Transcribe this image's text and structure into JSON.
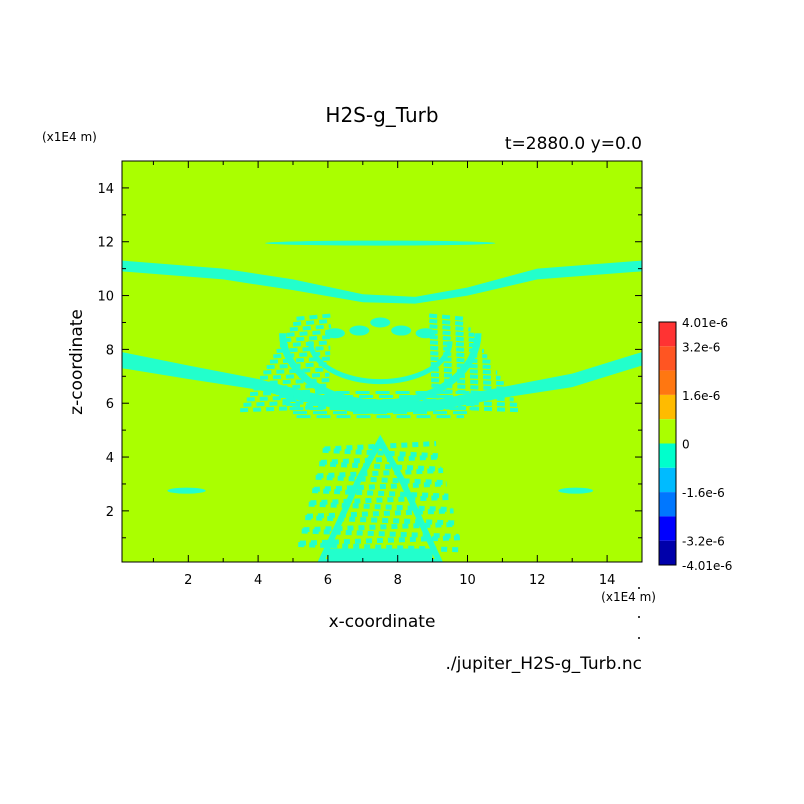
{
  "chart_data": {
    "type": "heatmap",
    "title": "H2S-g_Turb",
    "subtitle": "t=2880.0 y=0.0",
    "xlabel": "x-coordinate",
    "ylabel": "z-coordinate",
    "x_unit": "(x1E4 m)",
    "y_unit": "(x1E4 m)",
    "source_file": "./jupiter_H2S-g_Turb.nc",
    "xlim": [
      0.1,
      15
    ],
    "ylim": [
      0.1,
      15
    ],
    "xticks": [
      "2",
      "4",
      "6",
      "8",
      "10",
      "12",
      "14"
    ],
    "yticks": [
      "2",
      "4",
      "6",
      "8",
      "10",
      "12",
      "14"
    ],
    "colorbar": {
      "labels": [
        "4.01e-6",
        "3.2e-6",
        "1.6e-6",
        "0",
        "-1.6e-6",
        "-3.2e-6",
        "-4.01e-6"
      ],
      "levels": [
        4.01e-06,
        3.2e-06,
        2.4e-06,
        1.6e-06,
        8e-07,
        0,
        -8e-07,
        -1.6e-06,
        -2.4e-06,
        -3.2e-06,
        -4.01e-06
      ],
      "colors": [
        "#ff3333",
        "#ff5522",
        "#ff7711",
        "#ffbb00",
        "#aaff00",
        "#00ffcc",
        "#00bbff",
        "#0077ff",
        "#0000ff",
        "#0000aa"
      ]
    },
    "background_color": "#aaff00",
    "negative_color": "#22ffcc",
    "field_range": [
      -8e-07,
      8e-07
    ],
    "features": {
      "thin_band_top": {
        "x0": 4.2,
        "x1": 10.8,
        "z": 11.95
      },
      "side_bands_upper": [
        {
          "x": [
            0.1,
            3,
            5,
            7,
            8.5,
            10,
            12,
            15
          ],
          "z_top": [
            11.3,
            11.0,
            10.6,
            10.05,
            9.95,
            10.3,
            11.0,
            11.3
          ],
          "z_bot": [
            10.9,
            10.6,
            10.2,
            9.75,
            9.7,
            10.0,
            10.6,
            10.9
          ]
        }
      ],
      "side_bands_lower": [
        {
          "x": [
            0.1,
            2,
            4,
            5.5,
            7,
            9,
            11,
            13,
            15
          ],
          "z_top": [
            7.9,
            7.4,
            6.9,
            6.4,
            6.0,
            6.1,
            6.6,
            7.1,
            7.9
          ],
          "z_bot": [
            7.3,
            6.9,
            6.5,
            6.0,
            5.6,
            5.7,
            6.2,
            6.6,
            7.4
          ]
        }
      ],
      "short_bands_low": [
        {
          "x0": 1.4,
          "x1": 2.5,
          "z": 2.75
        },
        {
          "x0": 12.6,
          "x1": 13.6,
          "z": 2.75
        }
      ]
    }
  }
}
